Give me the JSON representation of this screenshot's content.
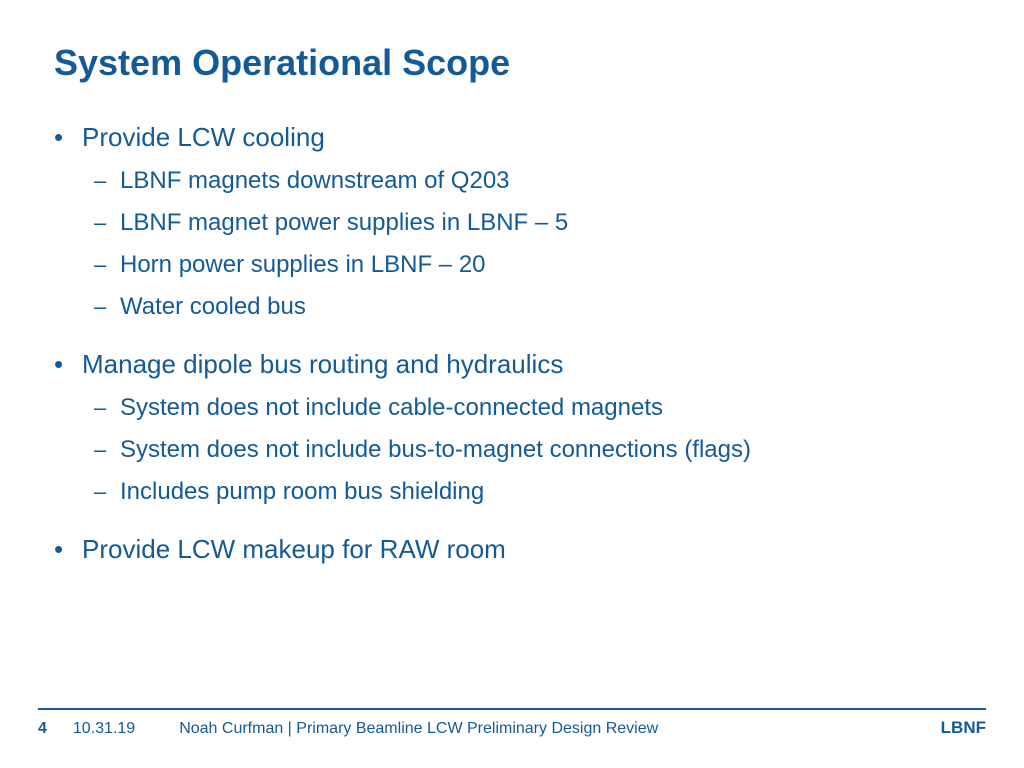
{
  "colors": {
    "primary": "#135a97",
    "background": "#ffffff"
  },
  "typography": {
    "title_fontsize": 36,
    "l1_fontsize": 26,
    "l2_fontsize": 24,
    "footer_fontsize": 16,
    "font_family": "Arial, Helvetica, sans-serif"
  },
  "title": "System Operational Scope",
  "bullets": [
    {
      "text": "Provide LCW cooling",
      "children": [
        "LBNF magnets downstream of Q203",
        "LBNF magnet power supplies in LBNF – 5",
        "Horn power supplies in LBNF – 20",
        "Water cooled bus"
      ]
    },
    {
      "text": "Manage dipole bus routing and hydraulics",
      "children": [
        "System does not include cable-connected magnets",
        "System does not include bus-to-magnet connections (flags)",
        "Includes pump room bus shielding"
      ]
    },
    {
      "text": "Provide LCW makeup for RAW room",
      "children": []
    }
  ],
  "footer": {
    "page": "4",
    "date": "10.31.19",
    "description": "Noah Curfman | Primary Beamline LCW Preliminary Design Review",
    "brand": "LBNF"
  },
  "markers": {
    "l1_bullet": "•",
    "l2_bullet": "–"
  }
}
